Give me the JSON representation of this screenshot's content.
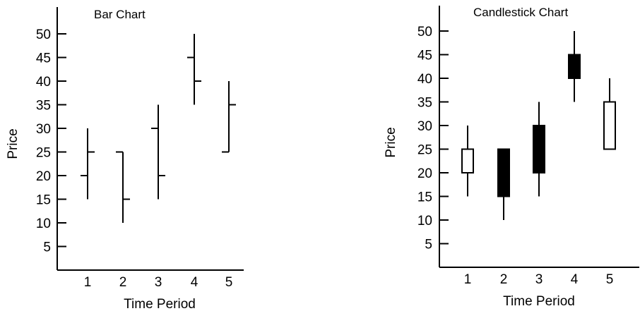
{
  "chart_data": [
    {
      "type": "bar",
      "title": "Bar Chart",
      "xlabel": "Time Period",
      "ylabel": "Price",
      "categories": [
        "1",
        "2",
        "3",
        "4",
        "5"
      ],
      "yticks": [
        5,
        10,
        15,
        20,
        25,
        30,
        35,
        40,
        45,
        50
      ],
      "ylim": [
        0,
        52
      ],
      "grid": false,
      "series": [
        {
          "open": [
            20,
            25,
            30,
            45,
            25
          ],
          "high": [
            30,
            25,
            35,
            50,
            40
          ],
          "low": [
            15,
            10,
            15,
            35,
            25
          ],
          "close": [
            25,
            15,
            20,
            40,
            35
          ]
        }
      ]
    },
    {
      "type": "candlestick",
      "title": "Candlestick Chart",
      "xlabel": "Time Period",
      "ylabel": "Price",
      "categories": [
        "1",
        "2",
        "3",
        "4",
        "5"
      ],
      "yticks": [
        5,
        10,
        15,
        20,
        25,
        30,
        35,
        40,
        45,
        50
      ],
      "ylim": [
        0,
        52
      ],
      "grid": false,
      "up_color": "#ffffff",
      "down_color": "#000000",
      "series": [
        {
          "open": [
            20,
            25,
            30,
            45,
            25
          ],
          "high": [
            30,
            25,
            35,
            50,
            40
          ],
          "low": [
            15,
            10,
            15,
            35,
            25
          ],
          "close": [
            25,
            15,
            20,
            40,
            35
          ]
        }
      ]
    }
  ]
}
